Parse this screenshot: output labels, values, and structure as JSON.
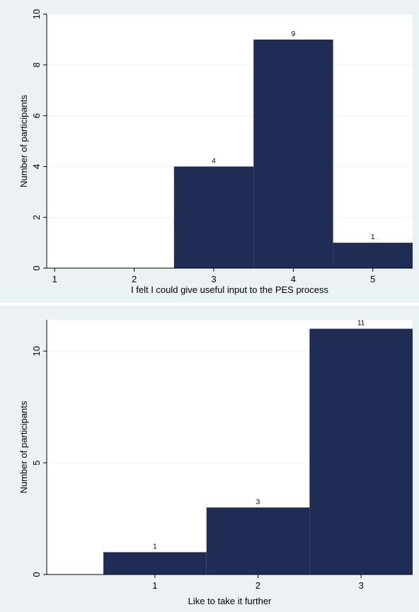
{
  "chart_data": [
    {
      "type": "bar",
      "title": "",
      "xlabel": "I felt I could give useful input to the PES process",
      "ylabel": "Number of participants",
      "x_ticks": [
        "1",
        "2",
        "3",
        "4",
        "5"
      ],
      "y_ticks": [
        "0",
        "2",
        "4",
        "6",
        "8",
        "10"
      ],
      "categories": [
        "3",
        "4",
        "5"
      ],
      "values": [
        4,
        9,
        1
      ],
      "data_labels": [
        "4",
        "9",
        "1"
      ],
      "xlim": [
        0.9,
        5.5
      ],
      "ylim": [
        0,
        10
      ],
      "grid": true,
      "bar_color": "#1f2d54",
      "background": "#eaf2f3"
    },
    {
      "type": "bar",
      "title": "",
      "xlabel": "Like to take it further",
      "ylabel": "Number of participants",
      "x_ticks": [
        "1",
        "2",
        "3"
      ],
      "y_ticks": [
        "0",
        "5",
        "10"
      ],
      "categories": [
        "1",
        "2",
        "3"
      ],
      "values": [
        1,
        3,
        11
      ],
      "data_labels": [
        "1",
        "3",
        "11"
      ],
      "xlim": [
        -0.05,
        3.5
      ],
      "ylim": [
        0,
        11.4
      ],
      "grid": true,
      "bar_color": "#1f2d54",
      "background": "#eaf2f3"
    }
  ]
}
